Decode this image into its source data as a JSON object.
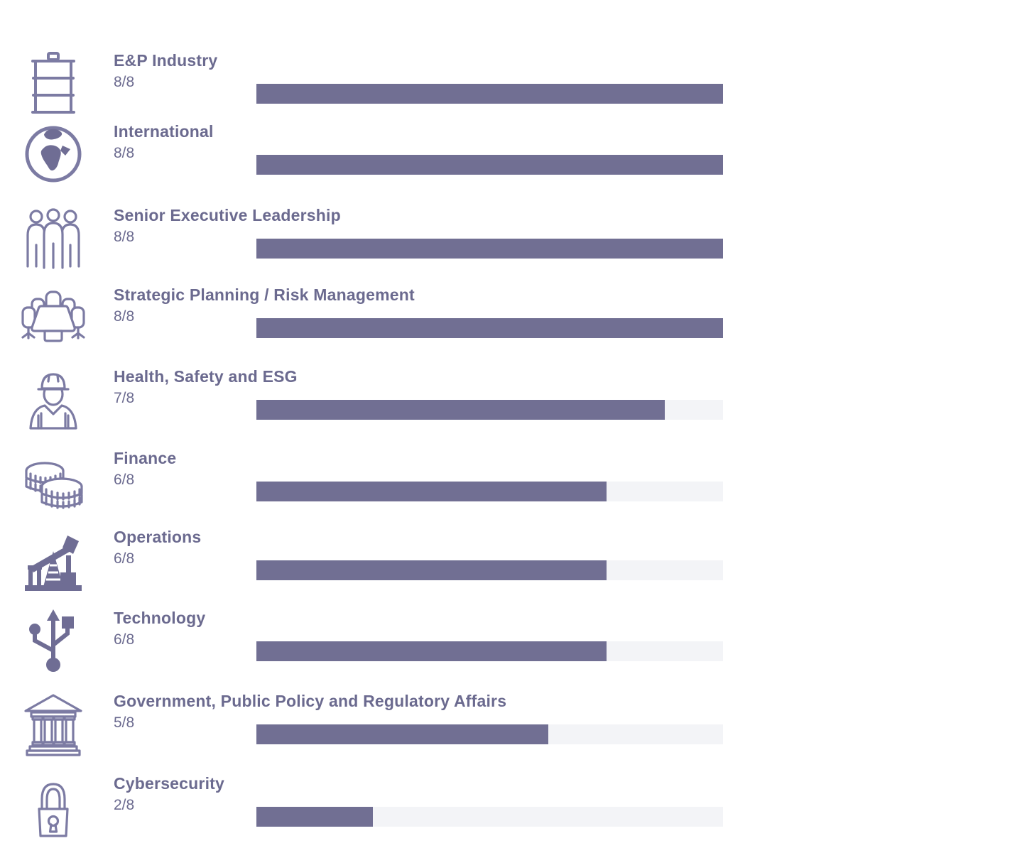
{
  "colors": {
    "accent": "#716F93",
    "track": "#F3F4F7",
    "text": "#6B6A8F",
    "icon": "#7C7BA3",
    "icon_solid": "#6F6D94"
  },
  "chart_data": {
    "type": "bar",
    "orientation": "horizontal",
    "xlim": [
      0,
      8
    ],
    "max_value": 8,
    "grid": false,
    "legend": "none",
    "rows": [
      {
        "label": "E&P Industry",
        "score_label": "8/8",
        "value": 8,
        "total": 8,
        "icon": "oil-barrel-icon"
      },
      {
        "label": "International",
        "score_label": "8/8",
        "value": 8,
        "total": 8,
        "icon": "globe-icon"
      },
      {
        "label": "Senior Executive Leadership",
        "score_label": "8/8",
        "value": 8,
        "total": 8,
        "icon": "people-icon"
      },
      {
        "label": "Strategic Planning / Risk Management",
        "score_label": "8/8",
        "value": 8,
        "total": 8,
        "icon": "meeting-table-icon"
      },
      {
        "label": "Health, Safety and ESG",
        "score_label": "7/8",
        "value": 7,
        "total": 8,
        "icon": "construction-worker-icon"
      },
      {
        "label": "Finance",
        "score_label": "6/8",
        "value": 6,
        "total": 8,
        "icon": "coins-icon"
      },
      {
        "label": "Operations",
        "score_label": "6/8",
        "value": 6,
        "total": 8,
        "icon": "oil-pumpjack-icon"
      },
      {
        "label": "Technology",
        "score_label": "6/8",
        "value": 6,
        "total": 8,
        "icon": "usb-icon"
      },
      {
        "label": "Government, Public Policy and Regulatory Affairs",
        "score_label": "5/8",
        "value": 5,
        "total": 8,
        "icon": "bank-building-icon"
      },
      {
        "label": "Cybersecurity",
        "score_label": "2/8",
        "value": 2,
        "total": 8,
        "icon": "padlock-icon"
      }
    ]
  }
}
